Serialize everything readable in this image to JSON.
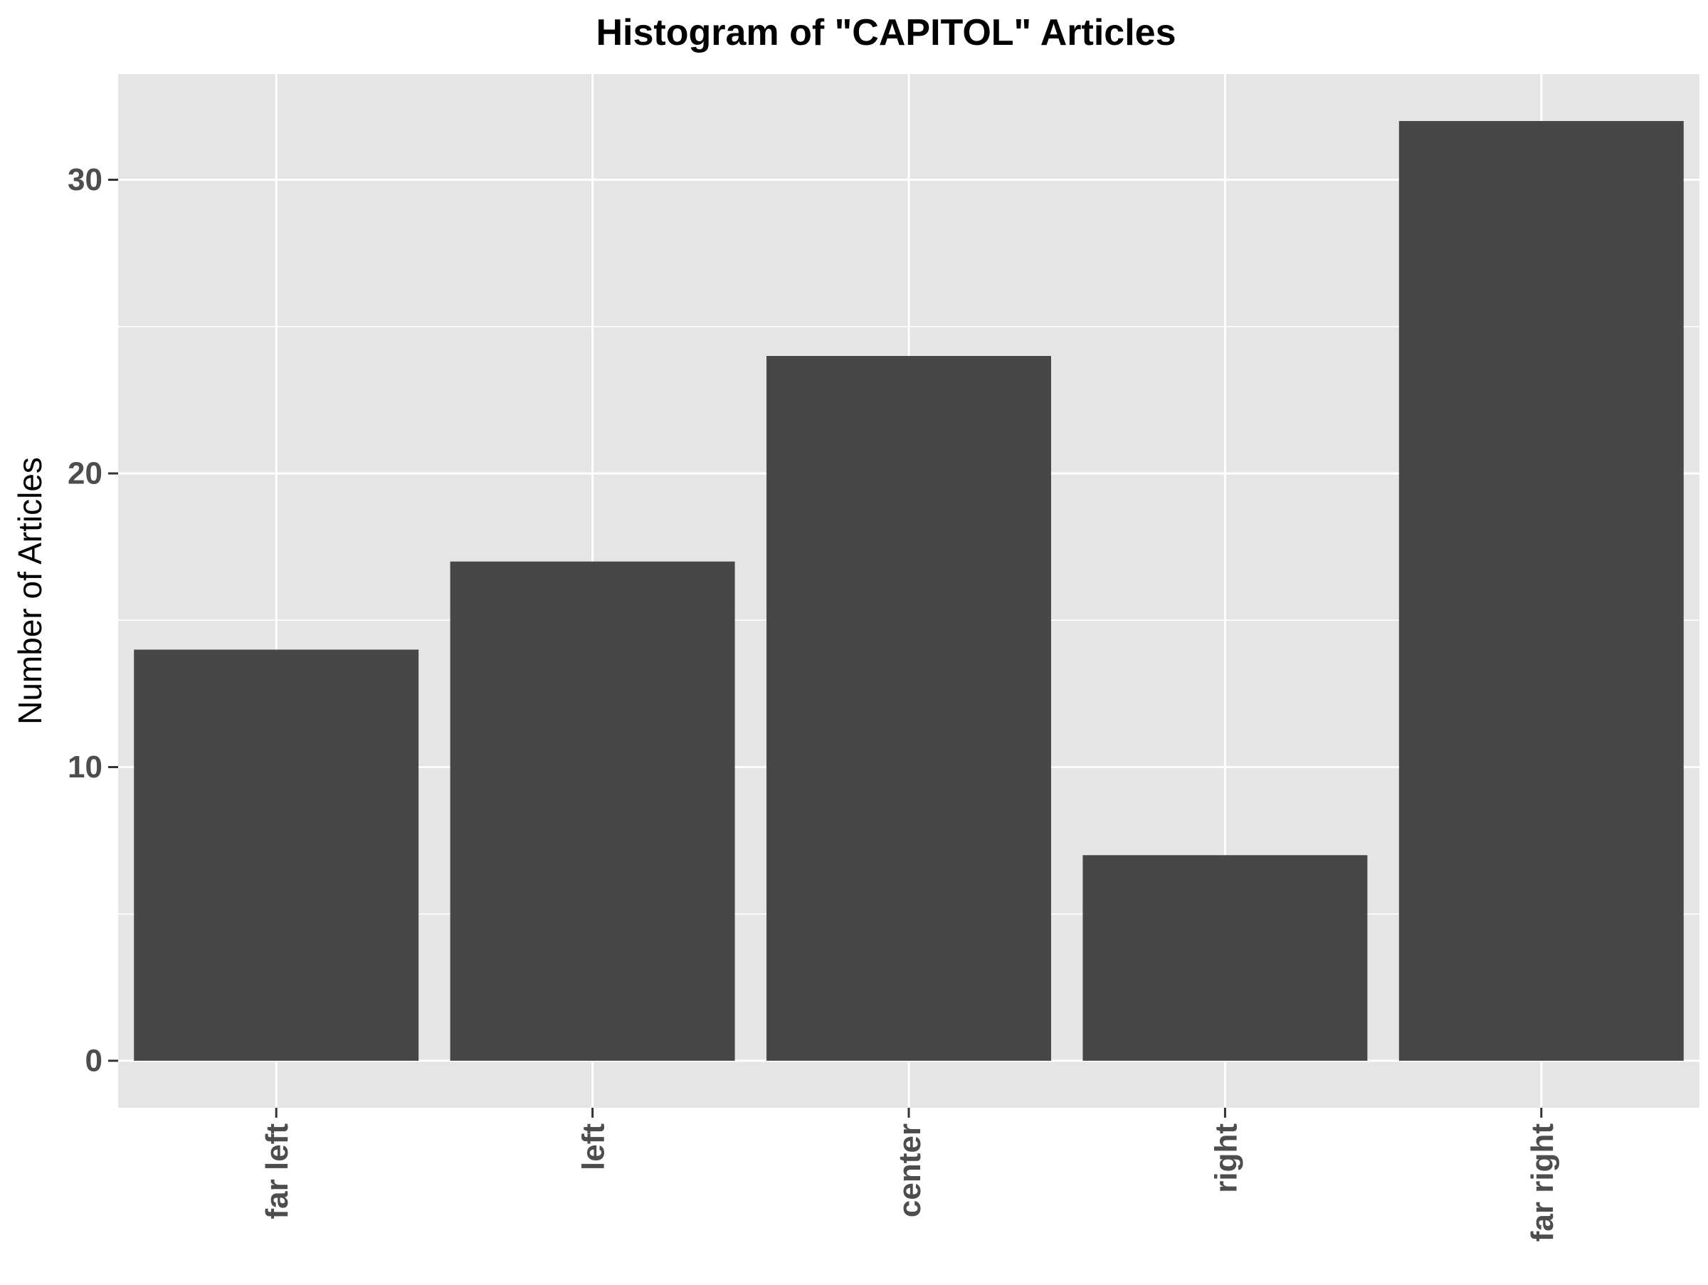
{
  "chart_data": {
    "type": "bar",
    "title": "Histogram of \"CAPITOL\" Articles",
    "xlabel": "",
    "ylabel": "Number of Articles",
    "categories": [
      "far left",
      "left",
      "center",
      "right",
      "far right"
    ],
    "values": [
      14,
      17,
      24,
      7,
      32
    ],
    "ylim": [
      -1.6,
      33.6
    ],
    "y_ticks": [
      0,
      10,
      20,
      30
    ],
    "y_tick_labels": [
      "0",
      "10",
      "20",
      "30"
    ],
    "grid": true,
    "legend": "none",
    "x_tick_label_orientation": "vertical",
    "colors": {
      "panel_background": "#e5e5e5",
      "grid_line": "#ffffff",
      "bar_fill": "#474747",
      "tick_label": "#4d4d4d",
      "title_text": "#000000"
    }
  }
}
